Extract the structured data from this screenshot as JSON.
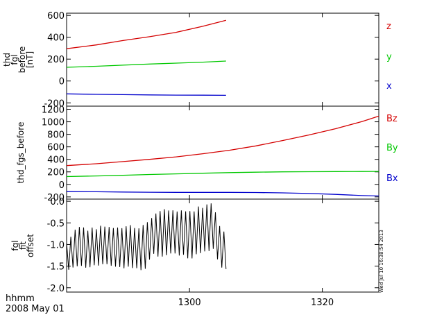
{
  "chart_data": [
    {
      "type": "line",
      "ylabel_lines": [
        "thd",
        "fgl",
        "before",
        "[nT]"
      ],
      "yticks": [
        -200,
        0,
        200,
        400,
        600
      ],
      "ylim": [
        -230,
        620
      ],
      "xlim": [
        1281.5,
        1328.5
      ],
      "grid": false,
      "legend_placement": "right",
      "series": [
        {
          "name": "z",
          "color": "#d40000",
          "x": [
            1281.5,
            1286,
            1290,
            1294,
            1298,
            1302,
            1305.5
          ],
          "y": [
            295,
            330,
            370,
            405,
            445,
            500,
            555
          ]
        },
        {
          "name": "y",
          "color": "#00c800",
          "x": [
            1281.5,
            1286,
            1290,
            1294,
            1298,
            1302,
            1305.5
          ],
          "y": [
            125,
            135,
            145,
            155,
            163,
            172,
            182
          ]
        },
        {
          "name": "x",
          "color": "#0000cc",
          "x": [
            1281.5,
            1286,
            1290,
            1294,
            1298,
            1302,
            1305.5
          ],
          "y": [
            -118,
            -122,
            -125,
            -127,
            -129,
            -130,
            -131
          ]
        }
      ]
    },
    {
      "type": "line",
      "ylabel_lines": [
        "thd_fgs_before"
      ],
      "yticks": [
        -200,
        0,
        200,
        400,
        600,
        800,
        1000,
        1200
      ],
      "ylim": [
        -235,
        1250
      ],
      "xlim": [
        1281.5,
        1328.5
      ],
      "grid": false,
      "legend_placement": "right",
      "series": [
        {
          "name": "Bz",
          "color": "#d40000",
          "x": [
            1281.5,
            1286,
            1290,
            1294,
            1298,
            1302,
            1306,
            1310,
            1314,
            1318,
            1322,
            1326,
            1328.5
          ],
          "y": [
            300,
            330,
            365,
            400,
            440,
            490,
            545,
            615,
            700,
            790,
            890,
            1005,
            1090
          ]
        },
        {
          "name": "By",
          "color": "#00c800",
          "x": [
            1281.5,
            1286,
            1290,
            1294,
            1298,
            1302,
            1306,
            1310,
            1314,
            1318,
            1322,
            1326,
            1328.5
          ],
          "y": [
            125,
            135,
            145,
            158,
            168,
            178,
            188,
            195,
            200,
            203,
            205,
            206,
            207
          ]
        },
        {
          "name": "Bx",
          "color": "#0000cc",
          "x": [
            1281.5,
            1286,
            1290,
            1294,
            1298,
            1302,
            1306,
            1310,
            1314,
            1318,
            1322,
            1326,
            1328.5
          ],
          "y": [
            -115,
            -118,
            -122,
            -125,
            -127,
            -128,
            -128,
            -130,
            -135,
            -145,
            -160,
            -178,
            -185
          ]
        }
      ]
    },
    {
      "type": "line",
      "ylabel_lines": [
        "fgl",
        "fit",
        "offset"
      ],
      "yticks": [
        -2.0,
        -1.5,
        -1.0,
        -0.5,
        0.0
      ],
      "ytick_labels": [
        "-2.0",
        "-1.5",
        "-1.0",
        "-0.5",
        "0.0"
      ],
      "ylim": [
        -2.1,
        0.05
      ],
      "xlim": [
        1281.5,
        1328.5
      ],
      "grid": false,
      "series": [
        {
          "name": "",
          "color": "#000000",
          "x": [
            1281.5,
            1283,
            1285,
            1287,
            1289,
            1291,
            1293,
            1294.5,
            1296,
            1298,
            1300,
            1302,
            1303.5,
            1304.5,
            1305.5
          ],
          "y_max": [
            -0.9,
            -0.55,
            -0.6,
            -0.55,
            -0.6,
            -0.55,
            -0.55,
            -0.3,
            -0.1,
            -0.15,
            -0.2,
            -0.05,
            0.0,
            -0.55,
            -0.75
          ],
          "y_min": [
            -1.6,
            -1.55,
            -1.6,
            -1.5,
            -1.55,
            -1.55,
            -1.65,
            -1.3,
            -1.3,
            -1.3,
            -1.35,
            -1.3,
            -1.1,
            -1.5,
            -1.6
          ]
        }
      ]
    }
  ],
  "x_axis": {
    "ticks": [
      1300,
      1320
    ],
    "tick_labels": [
      "1300",
      "1320"
    ],
    "unit_label": "hhmm",
    "date_label": "2008 May 01"
  },
  "stamp": "Wed Jul 10 16:38:54 2013"
}
